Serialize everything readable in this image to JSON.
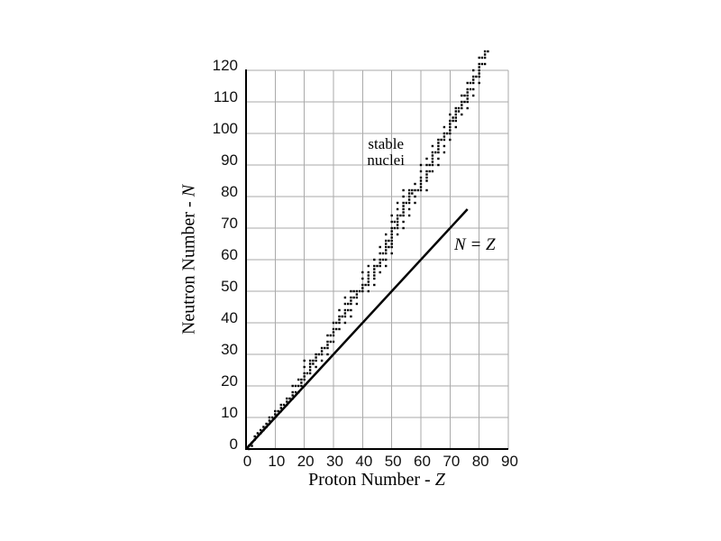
{
  "chart_data": {
    "type": "scatter",
    "title": "",
    "xlabel": "Proton Number - Z",
    "xlabel_prefix": "Proton Number - ",
    "xlabel_var": "Z",
    "ylabel": "Neutron Number - N",
    "ylabel_prefix": "Neutron Number - ",
    "ylabel_var": "N",
    "xlim": [
      0,
      90
    ],
    "ylim": [
      0,
      120
    ],
    "xticks": [
      0,
      10,
      20,
      30,
      40,
      50,
      60,
      70,
      80,
      90
    ],
    "yticks": [
      0,
      10,
      20,
      30,
      40,
      50,
      60,
      70,
      80,
      90,
      100,
      110,
      120
    ],
    "grid": true,
    "legend_position": "none",
    "colors": {
      "points": "#000000",
      "line": "#000000",
      "grid": "#aaaaaa",
      "axis": "#000000",
      "background": "#ffffff"
    },
    "annotations": {
      "stable_nuclei": {
        "line1": "stable",
        "line2": "nuclei",
        "x": 48,
        "y": 94
      },
      "n_eq_z": {
        "text": "N = Z",
        "x": 78.5,
        "y": 64.5
      }
    },
    "series": [
      {
        "name": "stable nuclei",
        "type": "scatter",
        "marker": "square",
        "nuclides_format": "[Z, [N values]]",
        "nuclides": [
          [
            1,
            [
              0,
              1
            ]
          ],
          [
            2,
            [
              1,
              2
            ]
          ],
          [
            3,
            [
              3,
              4
            ]
          ],
          [
            4,
            [
              5
            ]
          ],
          [
            5,
            [
              5,
              6
            ]
          ],
          [
            6,
            [
              6,
              7
            ]
          ],
          [
            7,
            [
              7,
              8
            ]
          ],
          [
            8,
            [
              8,
              9,
              10
            ]
          ],
          [
            9,
            [
              10
            ]
          ],
          [
            10,
            [
              10,
              11,
              12
            ]
          ],
          [
            11,
            [
              12
            ]
          ],
          [
            12,
            [
              12,
              13,
              14
            ]
          ],
          [
            13,
            [
              14
            ]
          ],
          [
            14,
            [
              14,
              15,
              16
            ]
          ],
          [
            15,
            [
              16
            ]
          ],
          [
            16,
            [
              16,
              17,
              18,
              20
            ]
          ],
          [
            17,
            [
              18,
              20
            ]
          ],
          [
            18,
            [
              18,
              20,
              22
            ]
          ],
          [
            19,
            [
              20,
              21,
              22
            ]
          ],
          [
            20,
            [
              20,
              22,
              23,
              24,
              26,
              28
            ]
          ],
          [
            21,
            [
              24
            ]
          ],
          [
            22,
            [
              24,
              25,
              26,
              27,
              28
            ]
          ],
          [
            23,
            [
              27,
              28
            ]
          ],
          [
            24,
            [
              26,
              28,
              29,
              30
            ]
          ],
          [
            25,
            [
              30
            ]
          ],
          [
            26,
            [
              28,
              30,
              31,
              32
            ]
          ],
          [
            27,
            [
              32
            ]
          ],
          [
            28,
            [
              30,
              32,
              33,
              34,
              36
            ]
          ],
          [
            29,
            [
              34,
              36
            ]
          ],
          [
            30,
            [
              34,
              36,
              37,
              38,
              40
            ]
          ],
          [
            31,
            [
              38,
              40
            ]
          ],
          [
            32,
            [
              38,
              40,
              41,
              42,
              44
            ]
          ],
          [
            33,
            [
              42
            ]
          ],
          [
            34,
            [
              40,
              42,
              43,
              44,
              46,
              48
            ]
          ],
          [
            35,
            [
              44,
              46
            ]
          ],
          [
            36,
            [
              42,
              44,
              46,
              47,
              48,
              50
            ]
          ],
          [
            37,
            [
              48,
              50
            ]
          ],
          [
            38,
            [
              46,
              48,
              49,
              50
            ]
          ],
          [
            39,
            [
              50
            ]
          ],
          [
            40,
            [
              50,
              51,
              52,
              54,
              56
            ]
          ],
          [
            41,
            [
              52
            ]
          ],
          [
            42,
            [
              50,
              52,
              53,
              54,
              55,
              56,
              58
            ]
          ],
          [
            44,
            [
              52,
              54,
              55,
              56,
              57,
              58,
              60
            ]
          ],
          [
            45,
            [
              58
            ]
          ],
          [
            46,
            [
              56,
              58,
              59,
              60,
              62,
              64
            ]
          ],
          [
            47,
            [
              60,
              62
            ]
          ],
          [
            48,
            [
              58,
              60,
              62,
              63,
              64,
              65,
              66,
              68
            ]
          ],
          [
            49,
            [
              64,
              66
            ]
          ],
          [
            50,
            [
              62,
              64,
              65,
              66,
              67,
              68,
              69,
              70,
              72,
              74
            ]
          ],
          [
            51,
            [
              70,
              72
            ]
          ],
          [
            52,
            [
              68,
              70,
              71,
              72,
              73,
              74,
              76,
              78
            ]
          ],
          [
            53,
            [
              74
            ]
          ],
          [
            54,
            [
              70,
              72,
              74,
              75,
              76,
              77,
              78,
              80,
              82
            ]
          ],
          [
            55,
            [
              78
            ]
          ],
          [
            56,
            [
              74,
              76,
              78,
              79,
              80,
              81,
              82
            ]
          ],
          [
            57,
            [
              81,
              82
            ]
          ],
          [
            58,
            [
              78,
              80,
              82,
              84
            ]
          ],
          [
            59,
            [
              82
            ]
          ],
          [
            60,
            [
              82,
              83,
              84,
              85,
              86,
              88,
              90
            ]
          ],
          [
            62,
            [
              82,
              85,
              86,
              87,
              88,
              90,
              92
            ]
          ],
          [
            63,
            [
              88,
              90
            ]
          ],
          [
            64,
            [
              88,
              90,
              91,
              92,
              93,
              94,
              96
            ]
          ],
          [
            65,
            [
              94
            ]
          ],
          [
            66,
            [
              90,
              92,
              94,
              95,
              96,
              97,
              98
            ]
          ],
          [
            67,
            [
              98
            ]
          ],
          [
            68,
            [
              94,
              96,
              98,
              99,
              100,
              102
            ]
          ],
          [
            69,
            [
              100
            ]
          ],
          [
            70,
            [
              98,
              100,
              101,
              102,
              103,
              104,
              106
            ]
          ],
          [
            71,
            [
              104,
              105
            ]
          ],
          [
            72,
            [
              102,
              104,
              105,
              106,
              107,
              108
            ]
          ],
          [
            73,
            [
              107,
              108
            ]
          ],
          [
            74,
            [
              106,
              108,
              109,
              110,
              112
            ]
          ],
          [
            75,
            [
              110,
              112
            ]
          ],
          [
            76,
            [
              108,
              110,
              111,
              112,
              113,
              114,
              116
            ]
          ],
          [
            77,
            [
              114,
              116
            ]
          ],
          [
            78,
            [
              112,
              114,
              116,
              117,
              118,
              120
            ]
          ],
          [
            79,
            [
              118
            ]
          ],
          [
            80,
            [
              116,
              118,
              119,
              120,
              121,
              122,
              124
            ]
          ],
          [
            81,
            [
              122,
              124
            ]
          ],
          [
            82,
            [
              122,
              124,
              125,
              126
            ]
          ],
          [
            83,
            [
              126
            ]
          ]
        ]
      },
      {
        "name": "N = Z",
        "type": "line",
        "x": [
          0,
          76
        ],
        "y": [
          0,
          76
        ]
      }
    ]
  }
}
